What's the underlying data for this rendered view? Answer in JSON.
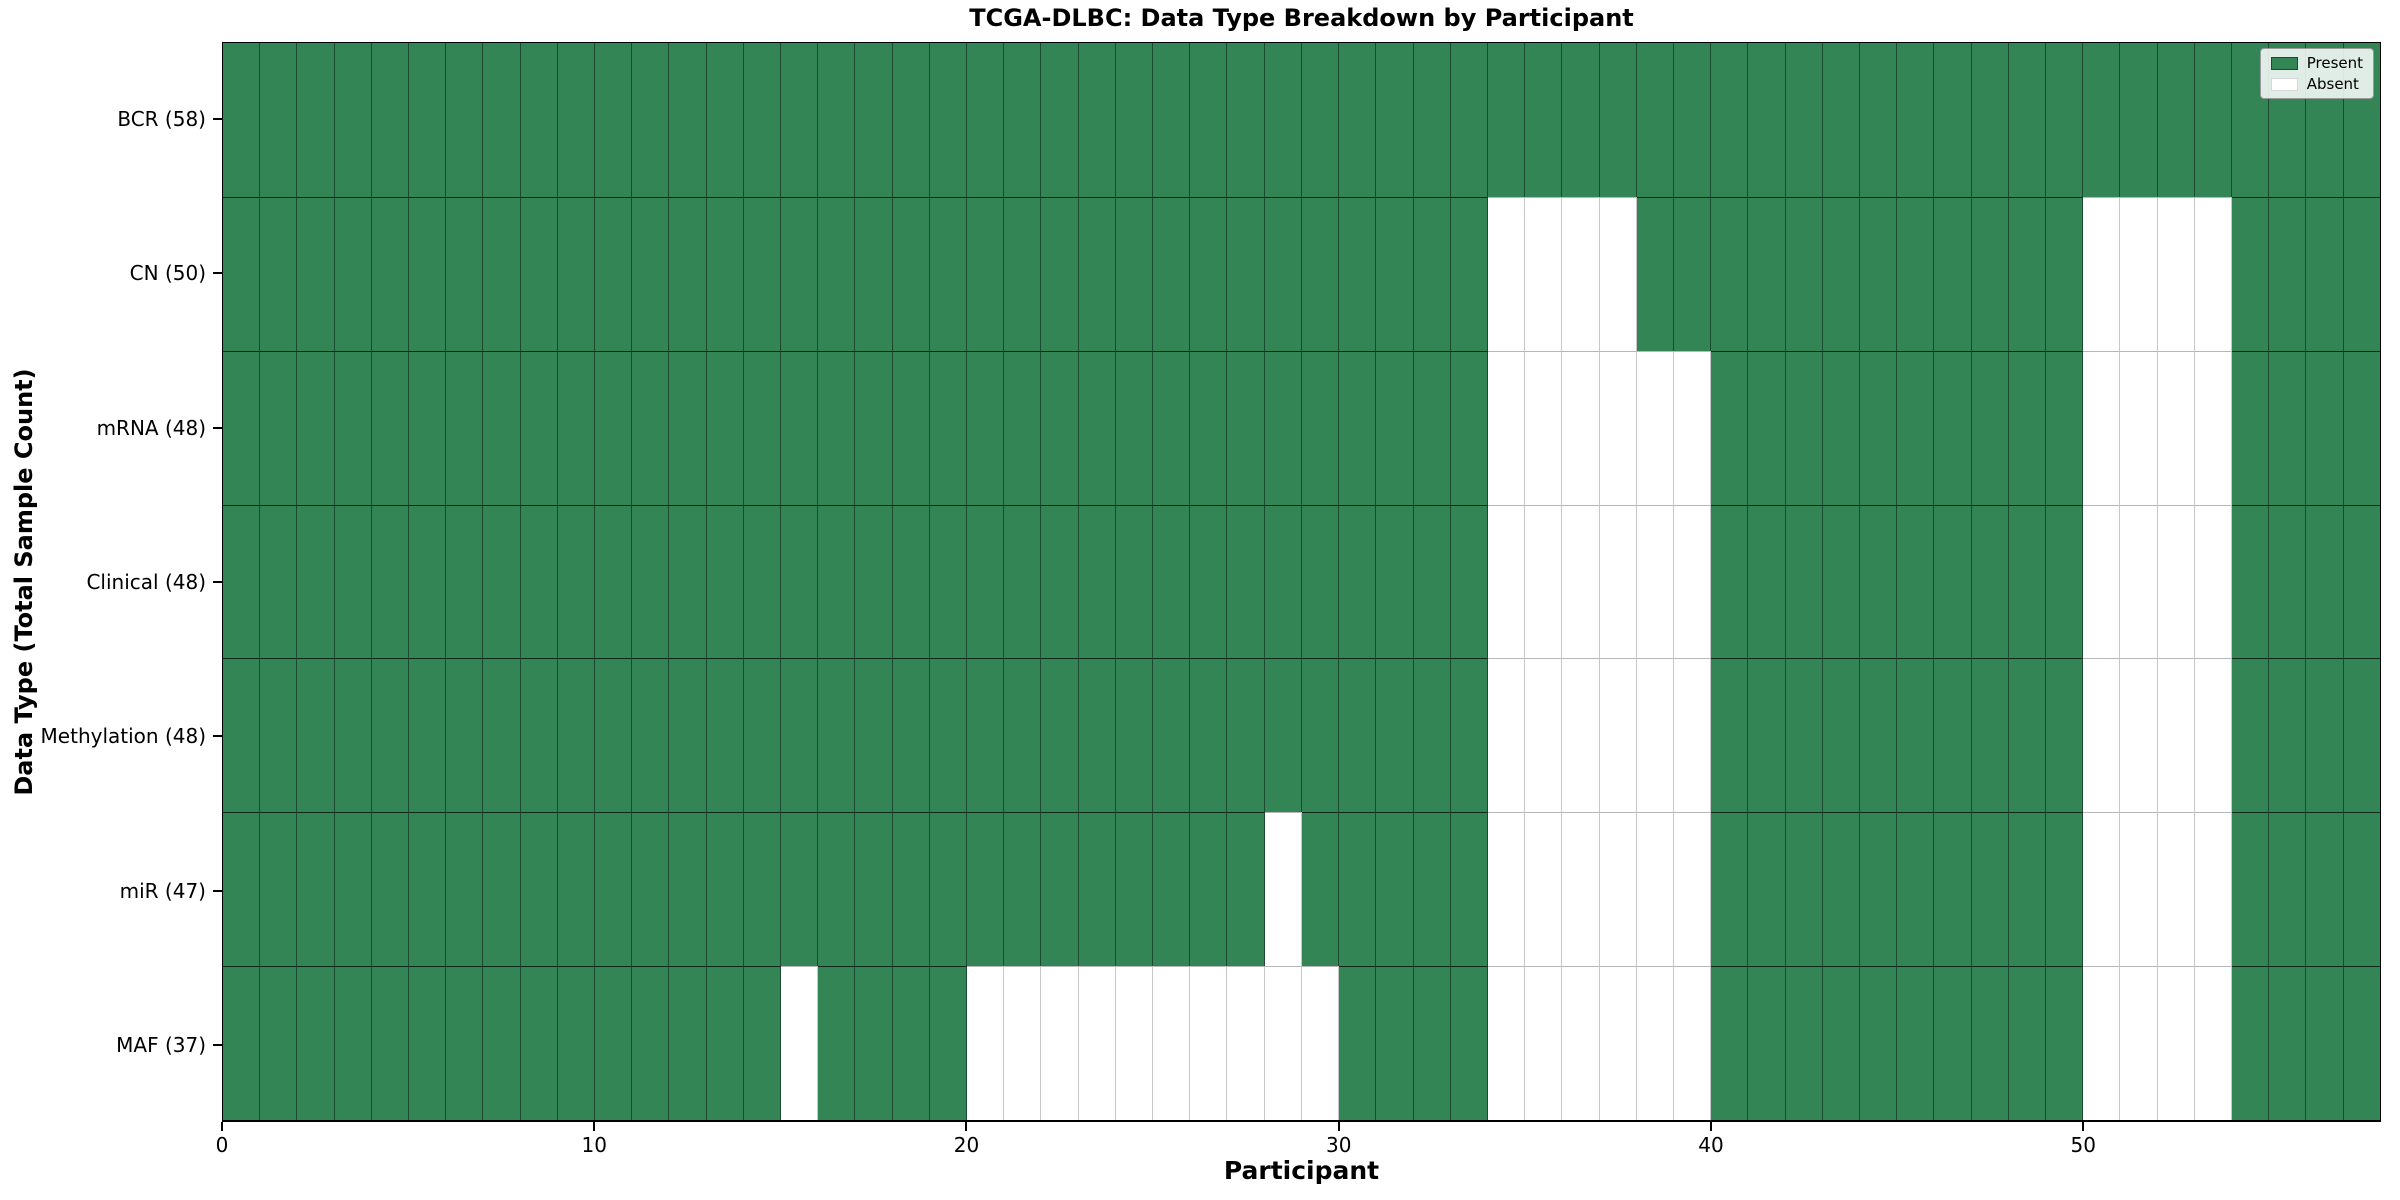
{
  "chart_data": {
    "type": "heatmap",
    "title": "TCGA-DLBC: Data Type Breakdown by Participant",
    "xlabel": "Participant",
    "ylabel": "Data Type (Total Sample Count)",
    "n_participants": 58,
    "x_ticks": [
      0,
      10,
      20,
      30,
      40,
      50
    ],
    "legend_position": "upper right",
    "grid": true,
    "colors": {
      "present": "#338556",
      "absent": "#ffffff"
    },
    "legend": [
      {
        "label": "Present",
        "color": "#338556"
      },
      {
        "label": "Absent",
        "color": "#ffffff"
      }
    ],
    "rows": [
      {
        "label": "BCR (58)",
        "data_type": "BCR",
        "total": 58,
        "absent_participants": []
      },
      {
        "label": "CN (50)",
        "data_type": "CN",
        "total": 50,
        "absent_participants": [
          34,
          35,
          36,
          37,
          50,
          51,
          52,
          53
        ]
      },
      {
        "label": "mRNA (48)",
        "data_type": "mRNA",
        "total": 48,
        "absent_participants": [
          34,
          35,
          36,
          37,
          38,
          39,
          50,
          51,
          52,
          53
        ]
      },
      {
        "label": "Clinical (48)",
        "data_type": "Clinical",
        "total": 48,
        "absent_participants": [
          34,
          35,
          36,
          37,
          38,
          39,
          50,
          51,
          52,
          53
        ]
      },
      {
        "label": "Methylation (48)",
        "data_type": "Methylation",
        "total": 48,
        "absent_participants": [
          34,
          35,
          36,
          37,
          38,
          39,
          50,
          51,
          52,
          53
        ]
      },
      {
        "label": "miR (47)",
        "data_type": "miR",
        "total": 47,
        "absent_participants": [
          28,
          34,
          35,
          36,
          37,
          38,
          39,
          50,
          51,
          52,
          53
        ]
      },
      {
        "label": "MAF (37)",
        "data_type": "MAF",
        "total": 37,
        "absent_participants": [
          15,
          20,
          21,
          22,
          23,
          24,
          25,
          26,
          27,
          28,
          29,
          34,
          35,
          36,
          37,
          38,
          39,
          50,
          51,
          52,
          53
        ]
      }
    ]
  }
}
